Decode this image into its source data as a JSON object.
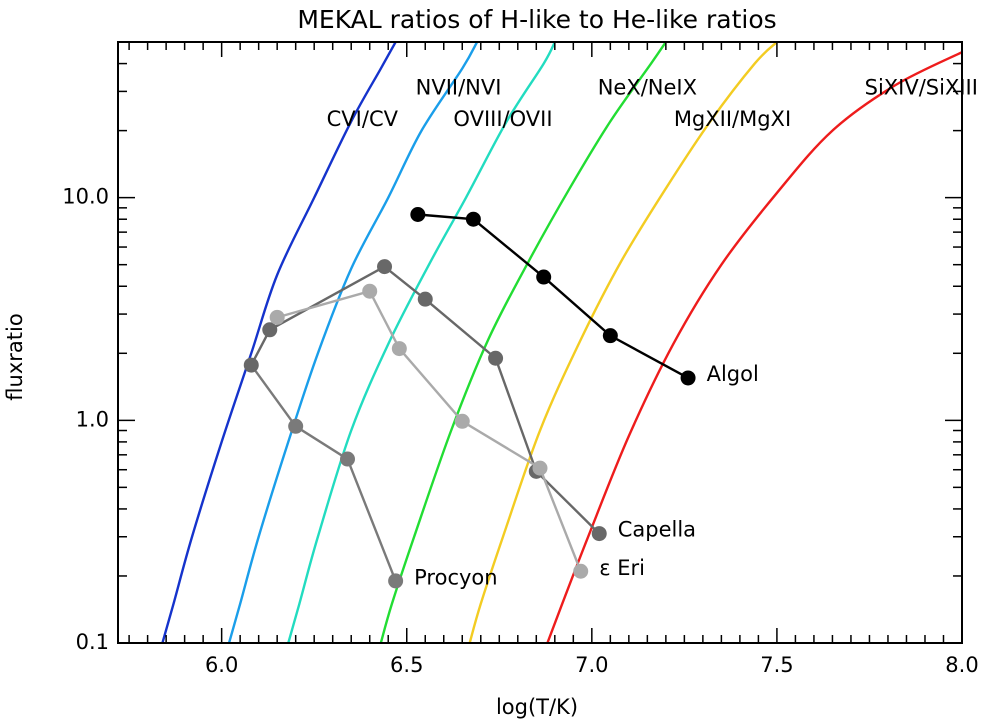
{
  "chart_data": {
    "type": "line",
    "title": "MEKAL ratios of H-like to He-like ratios",
    "xlabel": "log(T/K)",
    "ylabel": "fluxratio",
    "xlim": [
      5.72,
      8.0
    ],
    "ylim": [
      0.1,
      50
    ],
    "yscale": "log",
    "grid": false,
    "x_ticks": [
      "6.0",
      "6.5",
      "7.0",
      "7.5",
      "8.0"
    ],
    "y_ticks": [
      "0.1",
      "1.0",
      "10.0"
    ],
    "curves": [
      {
        "label": "CVI/CV",
        "color": "#1533cc",
        "points": [
          [
            5.84,
            0.1
          ],
          [
            5.87,
            0.15
          ],
          [
            5.92,
            0.3
          ],
          [
            6.0,
            0.8
          ],
          [
            6.08,
            2.0
          ],
          [
            6.15,
            4.5
          ],
          [
            6.25,
            10
          ],
          [
            6.35,
            22
          ],
          [
            6.43,
            38
          ],
          [
            6.47,
            50
          ]
        ]
      },
      {
        "label": "NVII/NVI",
        "color": "#1a9eea",
        "points": [
          [
            6.02,
            0.1
          ],
          [
            6.05,
            0.15
          ],
          [
            6.1,
            0.3
          ],
          [
            6.18,
            0.8
          ],
          [
            6.26,
            2.0
          ],
          [
            6.35,
            4.8
          ],
          [
            6.45,
            10
          ],
          [
            6.54,
            20
          ],
          [
            6.65,
            38
          ],
          [
            6.69,
            50
          ]
        ]
      },
      {
        "label": "OVIII/OVII",
        "color": "#22dcc0",
        "points": [
          [
            6.18,
            0.1
          ],
          [
            6.21,
            0.15
          ],
          [
            6.26,
            0.3
          ],
          [
            6.35,
            0.9
          ],
          [
            6.45,
            2.2
          ],
          [
            6.56,
            5
          ],
          [
            6.66,
            10
          ],
          [
            6.77,
            22
          ],
          [
            6.87,
            40
          ],
          [
            6.9,
            50
          ]
        ]
      },
      {
        "label": "NeX/NeIX",
        "color": "#22dd33",
        "points": [
          [
            6.43,
            0.1
          ],
          [
            6.46,
            0.15
          ],
          [
            6.52,
            0.3
          ],
          [
            6.62,
            0.9
          ],
          [
            6.72,
            2.3
          ],
          [
            6.83,
            5.2
          ],
          [
            6.94,
            11
          ],
          [
            7.05,
            22
          ],
          [
            7.16,
            40
          ],
          [
            7.2,
            50
          ]
        ]
      },
      {
        "label": "MgXII/MgXI",
        "color": "#f3cc22",
        "points": [
          [
            6.67,
            0.1
          ],
          [
            6.7,
            0.15
          ],
          [
            6.76,
            0.3
          ],
          [
            6.86,
            0.9
          ],
          [
            6.97,
            2.3
          ],
          [
            7.08,
            5.2
          ],
          [
            7.2,
            11
          ],
          [
            7.32,
            22
          ],
          [
            7.44,
            40
          ],
          [
            7.5,
            50
          ]
        ]
      },
      {
        "label": "SiXIV/SiXIII",
        "color": "#ee1c1c",
        "points": [
          [
            6.88,
            0.1
          ],
          [
            6.92,
            0.15
          ],
          [
            6.99,
            0.3
          ],
          [
            7.1,
            0.85
          ],
          [
            7.22,
            2.2
          ],
          [
            7.35,
            5
          ],
          [
            7.5,
            10.5
          ],
          [
            7.65,
            20
          ],
          [
            7.82,
            32
          ],
          [
            8.0,
            45
          ]
        ]
      }
    ],
    "curve_labels": [
      {
        "text": "CVI/CV",
        "x": 6.38,
        "y": 21
      },
      {
        "text": "NVII/NVI",
        "x": 6.64,
        "y": 29
      },
      {
        "text": "OVIII/OVII",
        "x": 6.76,
        "y": 21
      },
      {
        "text": "NeX/NeIX",
        "x": 7.15,
        "y": 29
      },
      {
        "text": "MgXII/MgXI",
        "x": 7.38,
        "y": 21
      },
      {
        "text": "SiXIV/SiXIII",
        "x": 7.89,
        "y": 29
      }
    ],
    "series": [
      {
        "name": "Algol",
        "color": "#000000",
        "points": [
          [
            6.53,
            8.4
          ],
          [
            6.68,
            8.0
          ],
          [
            6.87,
            4.4
          ],
          [
            7.05,
            2.4
          ],
          [
            7.26,
            1.55
          ]
        ],
        "label_at": [
          7.31,
          1.6
        ]
      },
      {
        "name": "Capella",
        "color": "#686868",
        "points": [
          [
            6.08,
            1.77
          ],
          [
            6.13,
            2.55
          ],
          [
            6.44,
            4.9
          ],
          [
            6.55,
            3.5
          ],
          [
            6.74,
            1.9
          ],
          [
            6.85,
            0.59
          ],
          [
            7.02,
            0.31
          ]
        ],
        "label_at": [
          7.07,
          0.32
        ]
      },
      {
        "name": "Procyon",
        "color": "#7a7a7a",
        "points": [
          [
            6.2,
            0.94
          ],
          [
            6.34,
            0.67
          ],
          [
            6.47,
            0.19
          ]
        ],
        "label_at": [
          6.52,
          0.195
        ]
      },
      {
        "name": "ε Eri",
        "color": "#aaaaaa",
        "points": [
          [
            6.15,
            2.9
          ],
          [
            6.4,
            3.8
          ],
          [
            6.48,
            2.1
          ],
          [
            6.65,
            0.99
          ],
          [
            6.86,
            0.61
          ],
          [
            6.97,
            0.21
          ]
        ],
        "label_at": [
          7.02,
          0.215
        ]
      }
    ],
    "connectors": [
      {
        "color": "#686868",
        "points": [
          [
            6.13,
            2.55
          ],
          [
            6.15,
            2.9
          ]
        ]
      },
      {
        "color": "#7a7a7a",
        "points": [
          [
            6.08,
            1.77
          ],
          [
            6.2,
            0.94
          ]
        ]
      }
    ]
  }
}
